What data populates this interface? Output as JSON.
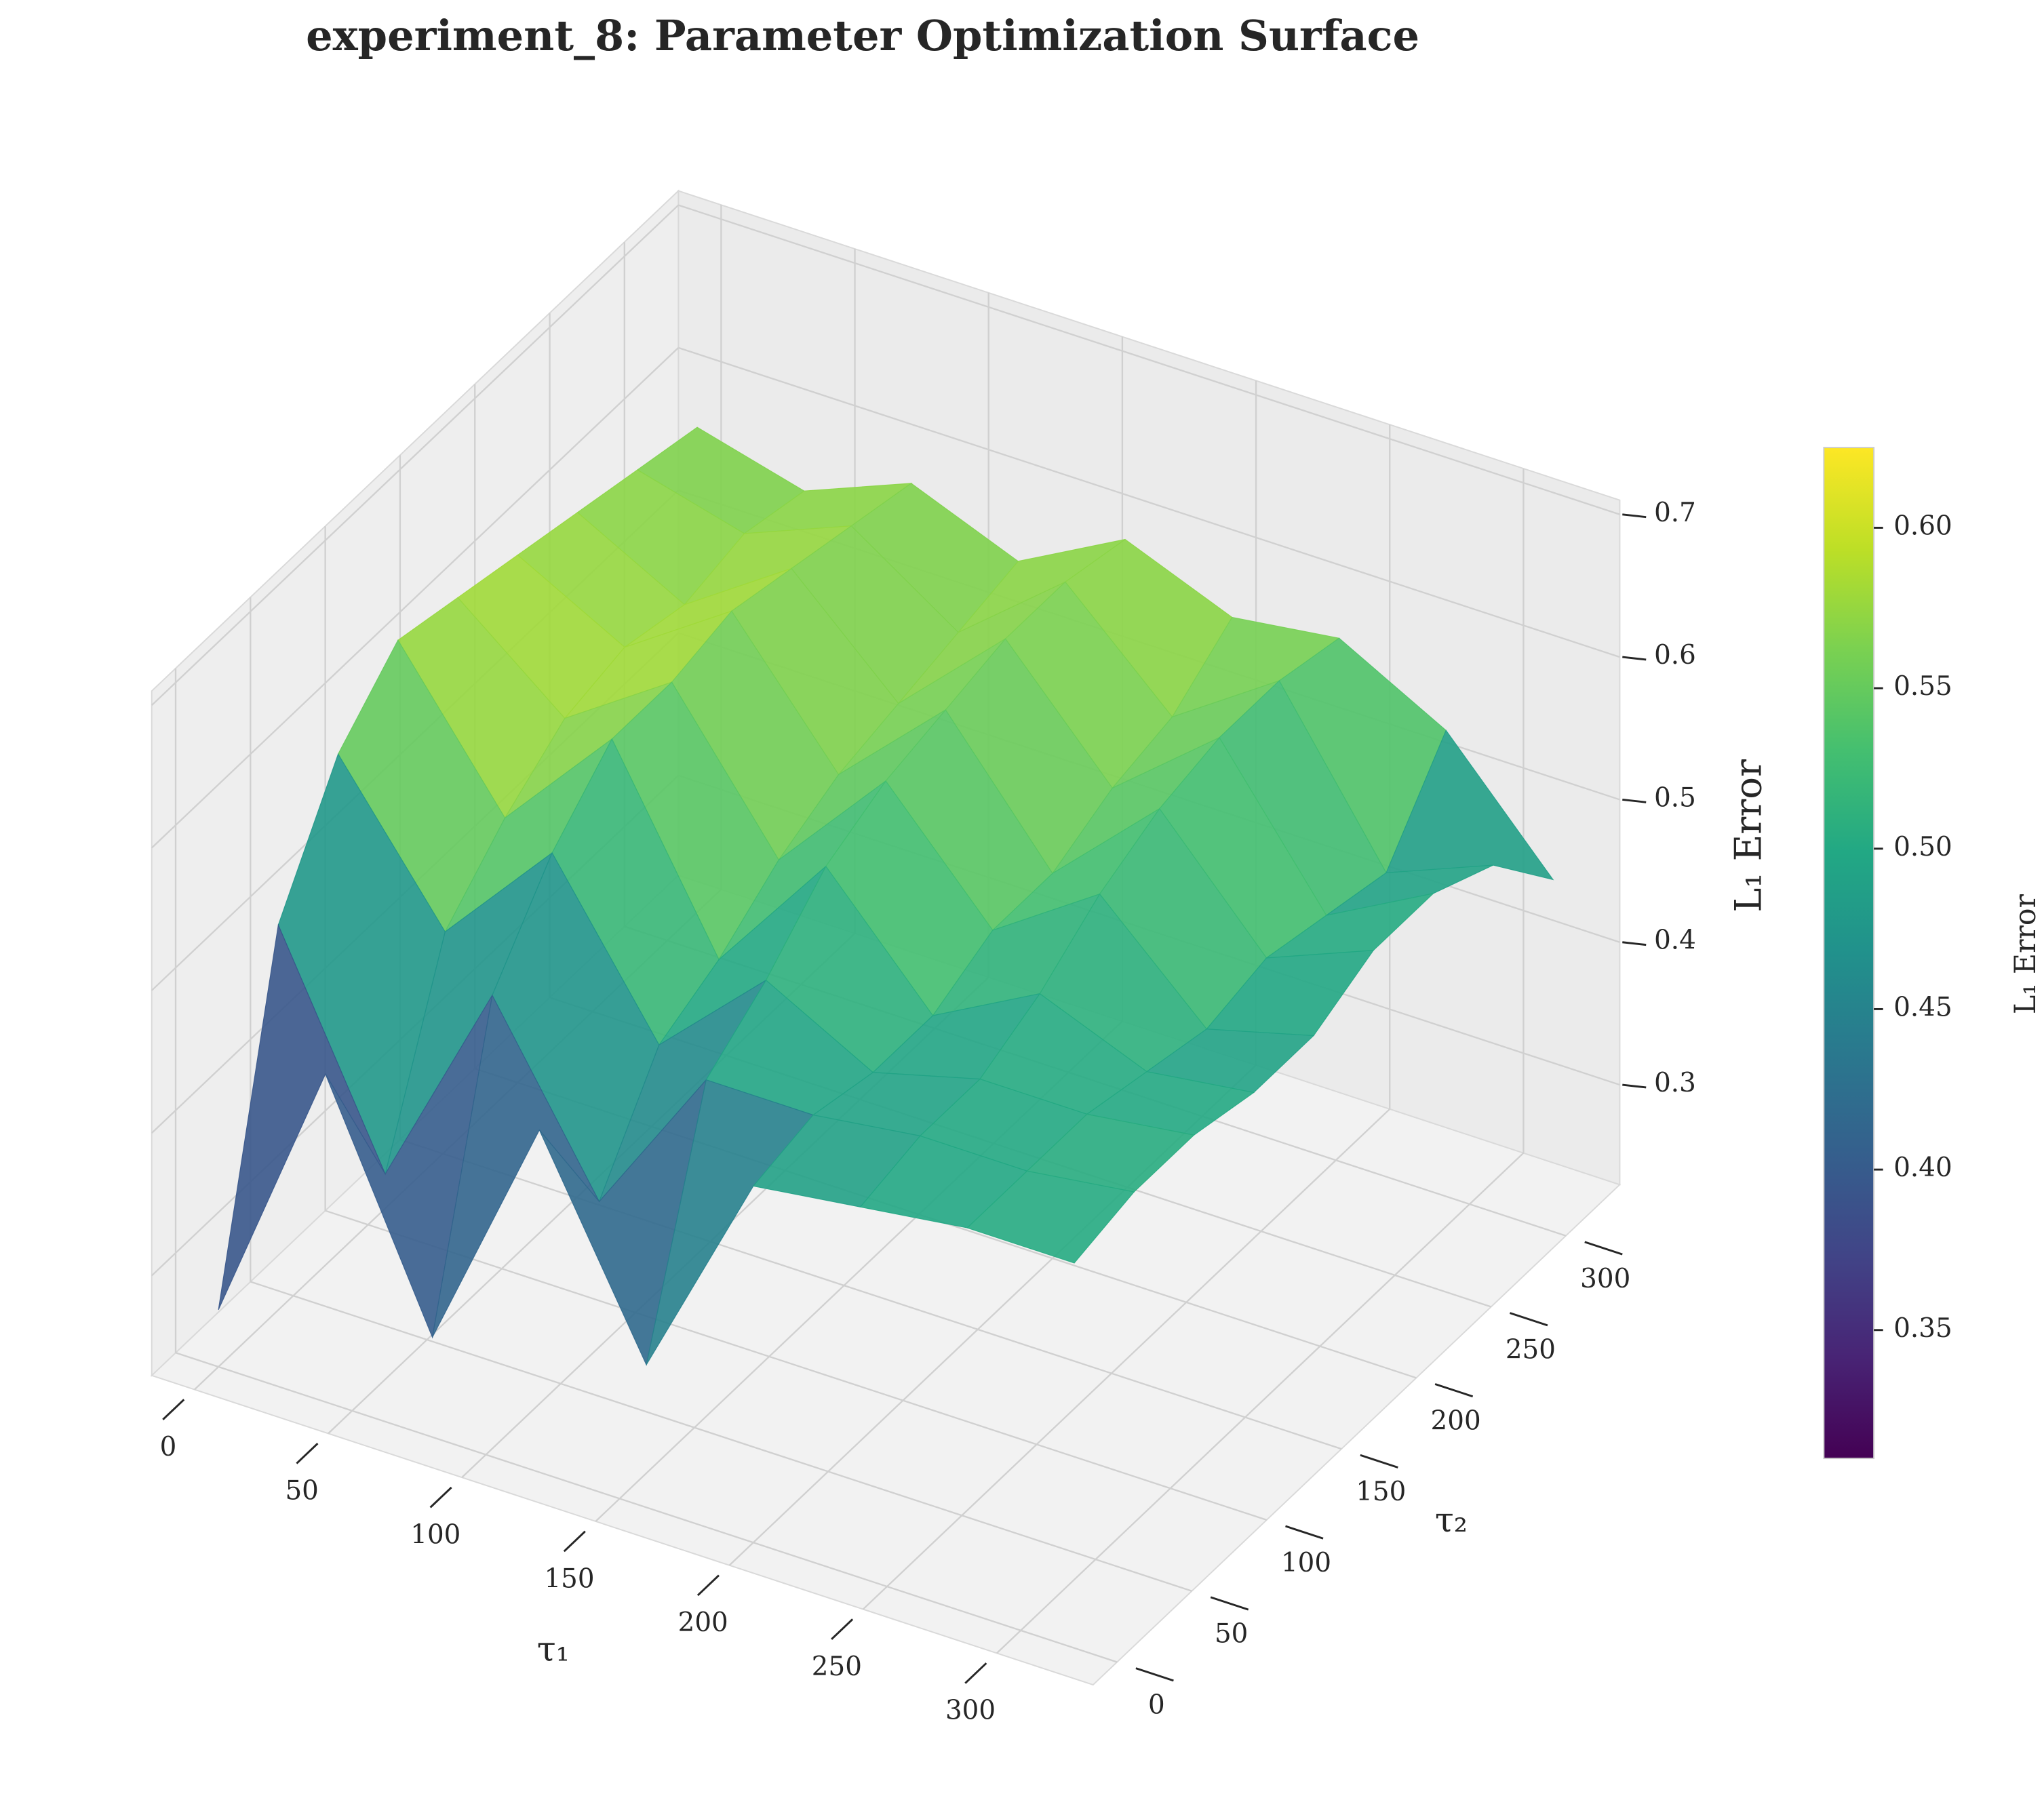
{
  "chart_data": {
    "type": "surface",
    "title": "experiment_8: Parameter Optimization Surface",
    "xlabel": "τ₁",
    "ylabel": "τ₂",
    "zlabel": "L₁ Error",
    "x": [
      0,
      40,
      80,
      120,
      160,
      200,
      240,
      280,
      320
    ],
    "y": [
      0,
      40,
      80,
      120,
      160,
      200,
      240,
      280,
      320
    ],
    "z": [
      [
        0.27,
        0.46,
        0.3,
        0.47,
        0.33,
        0.48,
        0.49,
        0.5,
        0.5
      ],
      [
        0.5,
        0.35,
        0.5,
        0.38,
        0.49,
        0.49,
        0.5,
        0.5,
        0.51
      ],
      [
        0.58,
        0.48,
        0.56,
        0.45,
        0.52,
        0.48,
        0.5,
        0.5,
        0.51
      ],
      [
        0.62,
        0.52,
        0.6,
        0.47,
        0.56,
        0.48,
        0.52,
        0.49,
        0.5
      ],
      [
        0.61,
        0.55,
        0.6,
        0.5,
        0.58,
        0.5,
        0.55,
        0.48,
        0.5
      ],
      [
        0.6,
        0.56,
        0.61,
        0.52,
        0.59,
        0.5,
        0.57,
        0.49,
        0.52
      ],
      [
        0.59,
        0.55,
        0.6,
        0.53,
        0.6,
        0.52,
        0.58,
        0.48,
        0.52
      ],
      [
        0.58,
        0.56,
        0.59,
        0.54,
        0.6,
        0.53,
        0.58,
        0.47,
        0.5
      ],
      [
        0.57,
        0.55,
        0.58,
        0.55,
        0.59,
        0.56,
        0.57,
        0.53,
        0.45
      ]
    ],
    "xlim": [
      -16,
      336
    ],
    "ylim": [
      -16,
      336
    ],
    "zlim": [
      0.23,
      0.71
    ],
    "xticks": [
      0,
      50,
      100,
      150,
      200,
      250,
      300
    ],
    "yticks": [
      0,
      50,
      100,
      150,
      200,
      250,
      300
    ],
    "zticks": [
      0.3,
      0.4,
      0.5,
      0.6,
      0.7
    ],
    "colormap": "viridis",
    "alpha": 0.9,
    "grid": true,
    "colorbar": {
      "label": "L₁ Error",
      "clim": [
        0.31,
        0.625
      ],
      "ticks": [
        0.35,
        {
          "value": 0.4,
          "label": "0.40"
        },
        0.45,
        {
          "value": 0.5,
          "label": "0.50"
        },
        0.55,
        {
          "value": 0.6,
          "label": "0.60"
        }
      ]
    }
  }
}
